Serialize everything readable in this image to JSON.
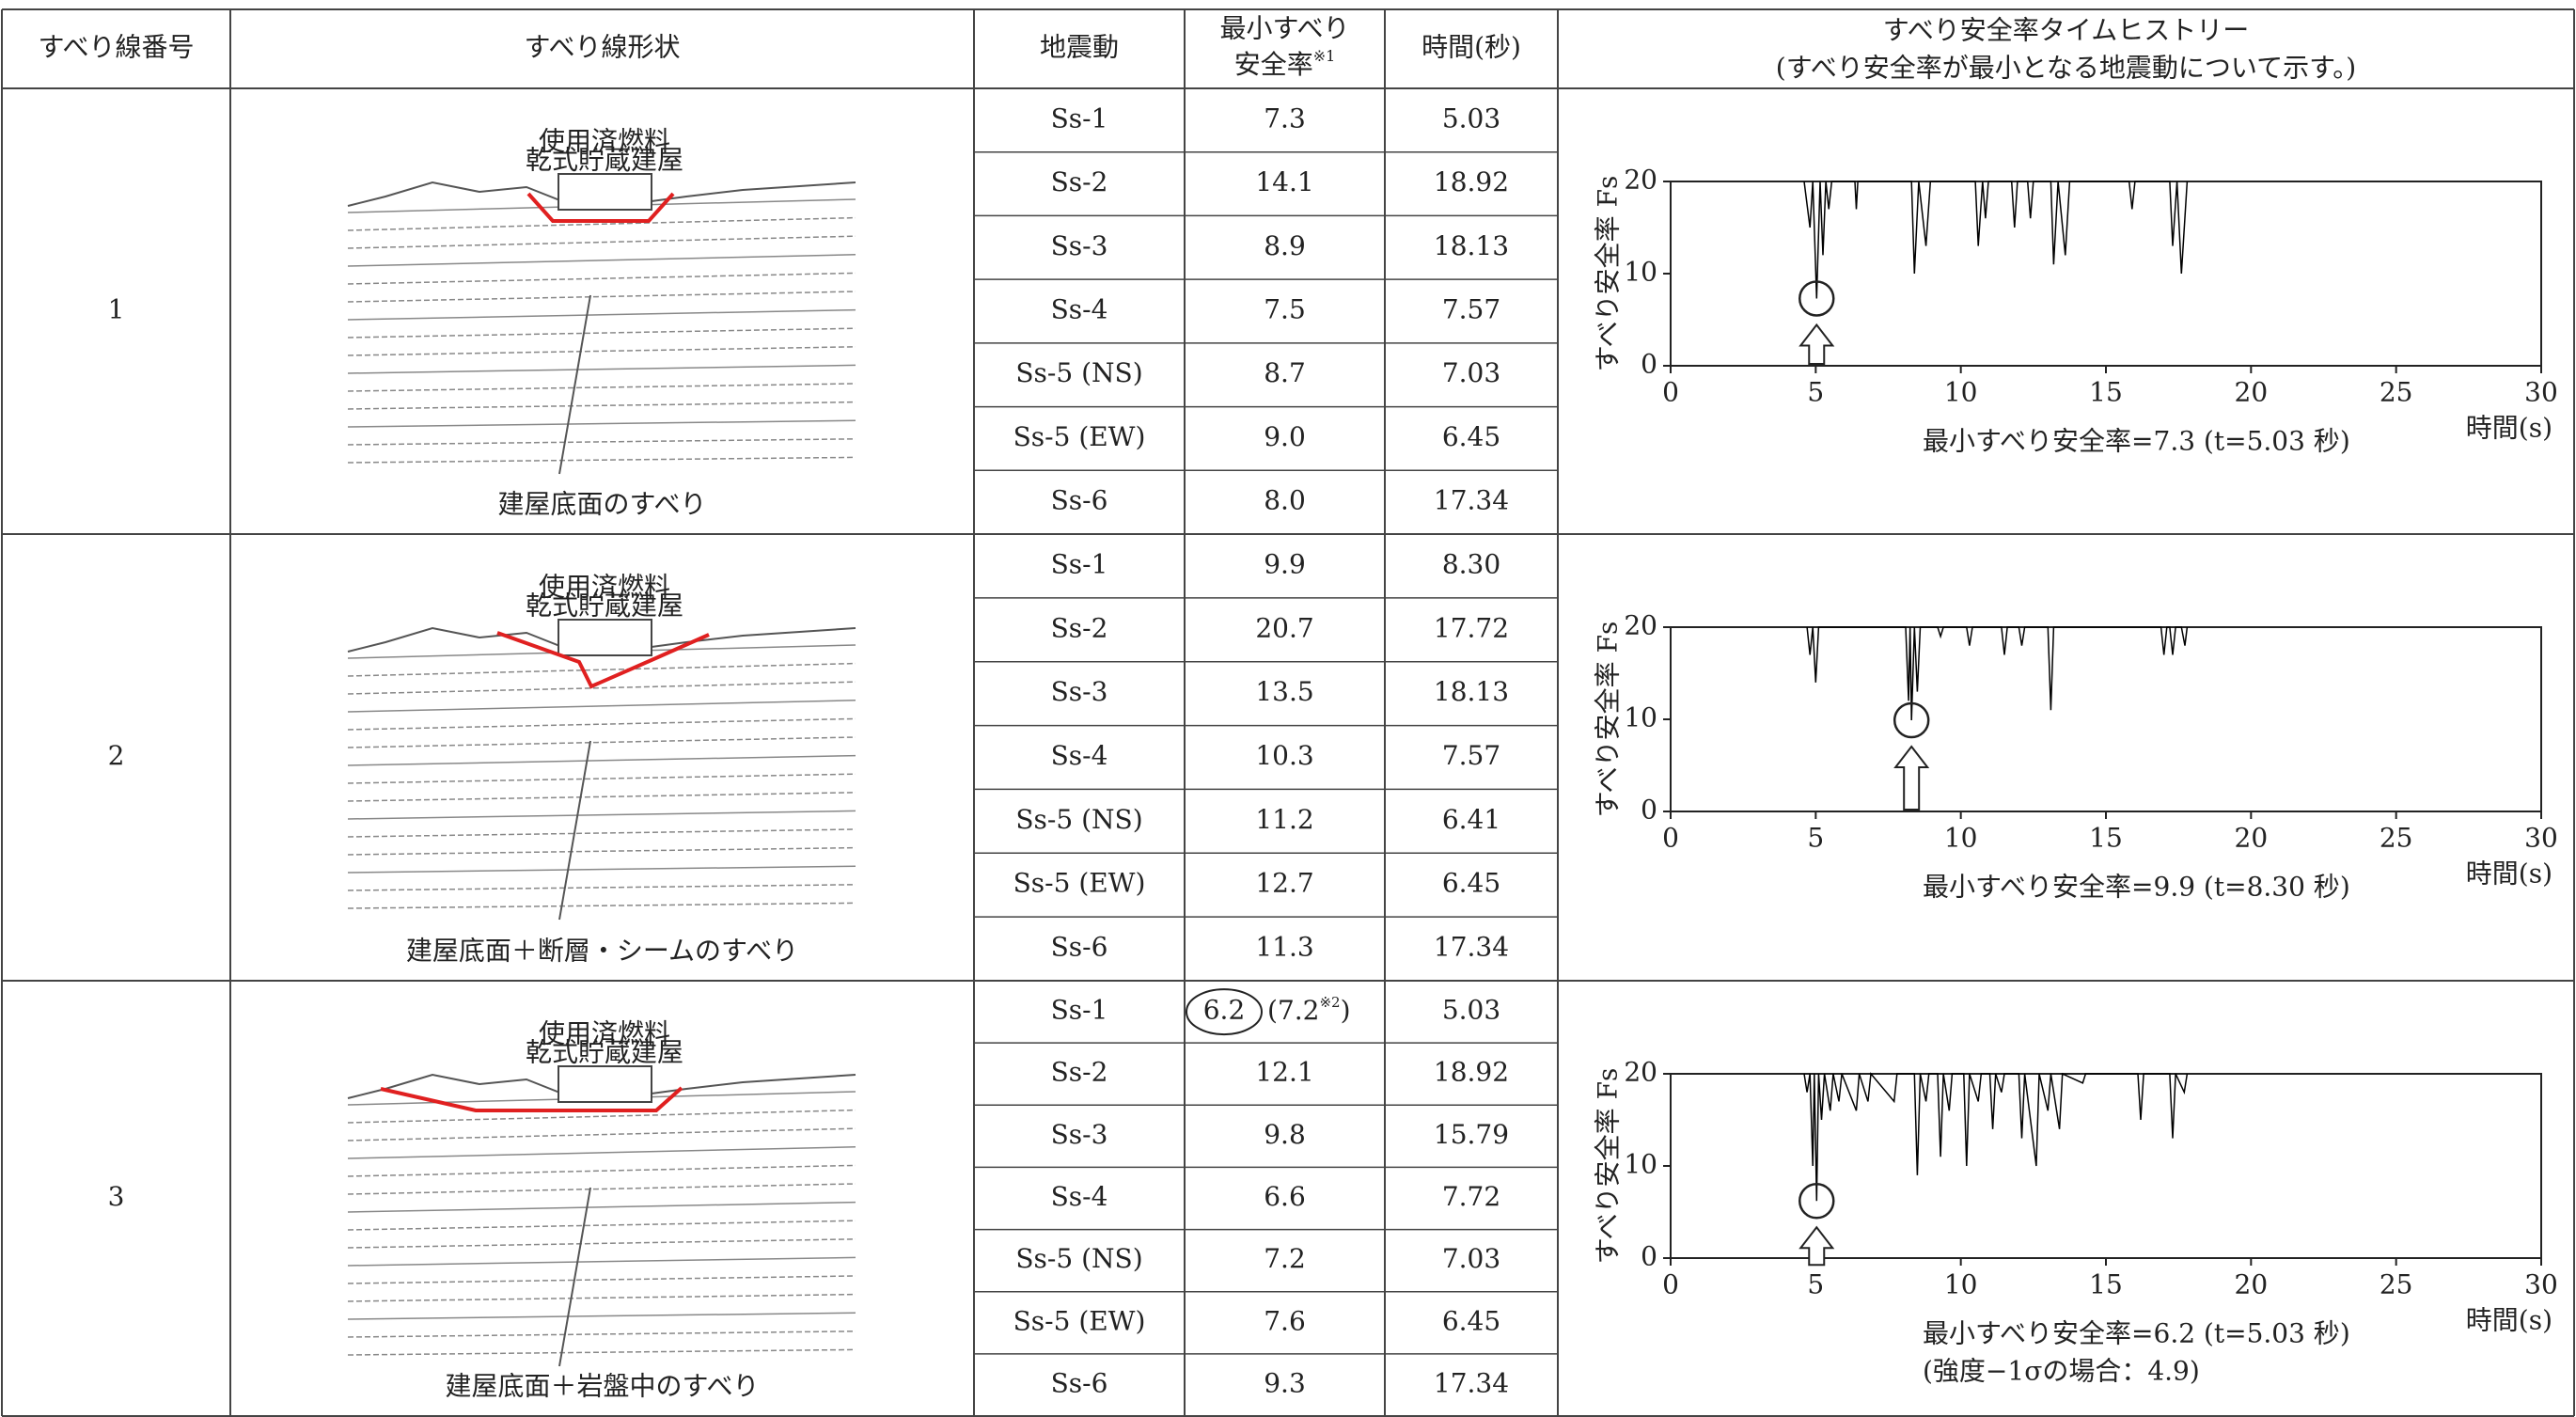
{
  "table": {
    "header": {
      "number": "すべり線番号",
      "shape": "すべり線形状",
      "motion": "地震動",
      "factor": [
        "最小すべり",
        "安全率"
      ],
      "factor_mark": "※1",
      "time": "時間(秒)",
      "history": "すべり安全率タイムヒストリー",
      "history_note": "(すべり安全率が最小となる地震動について示す。)"
    },
    "groups": [
      {
        "number": "1",
        "shape_label": "建屋底面のすべり",
        "building_label": [
          "使用済燃料",
          "乾式貯蔵建屋"
        ],
        "rows": [
          [
            "Ss-1",
            "7.3",
            "5.03"
          ],
          [
            "Ss-2",
            "14.1",
            "18.92"
          ],
          [
            "Ss-3",
            "8.9",
            "18.13"
          ],
          [
            "Ss-4",
            "7.5",
            "7.57"
          ],
          [
            "Ss-5 (NS)",
            "8.7",
            "7.03"
          ],
          [
            "Ss-5 (EW)",
            "9.0",
            "6.45"
          ],
          [
            "Ss-6",
            "8.0",
            "17.34"
          ]
        ],
        "chart": {
          "type": "line",
          "ylabel": "すべり安全率 Fs",
          "xlabel": "時間(s)",
          "xlim": [
            0,
            30
          ],
          "ylim": [
            0,
            20
          ],
          "xticks": [
            0,
            5,
            10,
            15,
            20,
            25,
            30
          ],
          "yticks": [
            0,
            10,
            20
          ],
          "color": "#000000",
          "x": [
            4.6,
            4.8,
            4.9,
            5.03,
            5.15,
            5.25,
            5.35,
            5.45,
            5.55,
            6.35,
            6.4,
            6.45,
            8.3,
            8.4,
            8.55,
            8.8,
            8.95,
            10.5,
            10.6,
            10.75,
            10.85,
            10.95,
            11.75,
            11.85,
            11.95,
            12.3,
            12.4,
            12.5,
            13.1,
            13.2,
            13.35,
            13.6,
            13.75,
            15.8,
            15.9,
            16.0,
            17.2,
            17.3,
            17.45,
            17.6,
            17.8
          ],
          "values": [
            20,
            15,
            20,
            7.3,
            20,
            12,
            20,
            17,
            20,
            20,
            17,
            20,
            20,
            10,
            20,
            13,
            20,
            20,
            13,
            20,
            16,
            20,
            20,
            15,
            20,
            20,
            16,
            20,
            20,
            11,
            20,
            12,
            20,
            20,
            17,
            20,
            20,
            13,
            20,
            10,
            20
          ],
          "min_point": {
            "x": 5.03,
            "y": 7.3
          },
          "caption": "最小すべり安全率=7.3 (t=5.03 秒)"
        }
      },
      {
        "number": "2",
        "shape_label": "建屋底面＋断層・シームのすべり",
        "building_label": [
          "使用済燃料",
          "乾式貯蔵建屋"
        ],
        "rows": [
          [
            "Ss-1",
            "9.9",
            "8.30"
          ],
          [
            "Ss-2",
            "20.7",
            "17.72"
          ],
          [
            "Ss-3",
            "13.5",
            "18.13"
          ],
          [
            "Ss-4",
            "10.3",
            "7.57"
          ],
          [
            "Ss-5 (NS)",
            "11.2",
            "6.41"
          ],
          [
            "Ss-5 (EW)",
            "12.7",
            "6.45"
          ],
          [
            "Ss-6",
            "11.3",
            "17.34"
          ]
        ],
        "chart": {
          "type": "line",
          "ylabel": "すべり安全率 Fs",
          "xlabel": "時間(s)",
          "xlim": [
            0,
            30
          ],
          "ylim": [
            0,
            20
          ],
          "xticks": [
            0,
            5,
            10,
            15,
            20,
            25,
            30
          ],
          "yticks": [
            0,
            10,
            20
          ],
          "color": "#000000",
          "x": [
            4.7,
            4.8,
            4.9,
            5.0,
            5.1,
            8.1,
            8.2,
            8.25,
            8.3,
            8.4,
            8.5,
            8.6,
            9.2,
            9.3,
            9.4,
            10.2,
            10.3,
            10.4,
            11.4,
            11.5,
            11.6,
            12.0,
            12.1,
            12.2,
            13.0,
            13.1,
            13.2,
            16.9,
            17.0,
            17.1,
            17.2,
            17.3,
            17.4,
            17.6,
            17.72,
            17.8
          ],
          "values": [
            20,
            17,
            20,
            14,
            20,
            20,
            12,
            20,
            9.9,
            20,
            13,
            20,
            20,
            19,
            20,
            20,
            18,
            20,
            20,
            17,
            20,
            20,
            18,
            20,
            20,
            11,
            20,
            20,
            17,
            20,
            20,
            17,
            20,
            20,
            18,
            20
          ],
          "min_point": {
            "x": 8.3,
            "y": 9.9
          },
          "caption": "最小すべり安全率=9.9 (t=8.30 秒)"
        }
      },
      {
        "number": "3",
        "shape_label": "建屋底面＋岩盤中のすべり",
        "building_label": [
          "使用済燃料",
          "乾式貯蔵建屋"
        ],
        "rows": [
          [
            "Ss-1",
            "6.2",
            "5.03"
          ],
          [
            "Ss-2",
            "12.1",
            "18.92"
          ],
          [
            "Ss-3",
            "9.8",
            "15.79"
          ],
          [
            "Ss-4",
            "6.6",
            "7.72"
          ],
          [
            "Ss-5 (NS)",
            "7.2",
            "7.03"
          ],
          [
            "Ss-5 (EW)",
            "7.6",
            "6.45"
          ],
          [
            "Ss-6",
            "9.3",
            "17.34"
          ]
        ],
        "alt_factor": {
          "prefix": "(",
          "value": "7.2",
          "mark": "※2",
          "suffix": ")"
        },
        "chart": {
          "type": "line",
          "ylabel": "すべり安全率 Fs",
          "xlabel": "時間(s)",
          "xlim": [
            0,
            30
          ],
          "ylim": [
            0,
            20
          ],
          "xticks": [
            0,
            5,
            10,
            15,
            20,
            25,
            30
          ],
          "yticks": [
            0,
            10,
            20
          ],
          "color": "#000000",
          "x": [
            4.6,
            4.7,
            4.8,
            4.9,
            4.95,
            5.03,
            5.1,
            5.2,
            5.3,
            5.5,
            5.6,
            5.8,
            5.9,
            6.4,
            6.5,
            6.8,
            6.9,
            7.7,
            7.8,
            8.4,
            8.5,
            8.6,
            8.8,
            8.9,
            9.2,
            9.3,
            9.4,
            9.6,
            9.7,
            10.1,
            10.2,
            10.3,
            10.6,
            10.7,
            11.0,
            11.1,
            11.2,
            11.4,
            11.5,
            12.0,
            12.1,
            12.2,
            12.6,
            12.7,
            13.0,
            13.1,
            13.4,
            13.5,
            14.2,
            14.3,
            16.1,
            16.2,
            16.3,
            17.2,
            17.3,
            17.4,
            17.7,
            17.8
          ],
          "values": [
            20,
            18,
            20,
            10,
            20,
            6.2,
            20,
            15,
            20,
            16,
            20,
            17,
            20,
            16,
            20,
            17,
            20,
            17,
            20,
            20,
            9,
            20,
            17,
            20,
            20,
            11,
            20,
            16,
            20,
            20,
            10,
            20,
            17,
            20,
            20,
            14,
            20,
            18,
            20,
            20,
            13,
            20,
            10,
            20,
            16,
            20,
            14,
            20,
            19,
            20,
            20,
            15,
            20,
            20,
            13,
            20,
            18,
            20
          ],
          "min_point": {
            "x": 5.03,
            "y": 6.2
          },
          "caption": "最小すべり安全率=6.2 (t=5.03 秒)",
          "note": "(強度−1σの場合：4.9)"
        }
      }
    ]
  }
}
